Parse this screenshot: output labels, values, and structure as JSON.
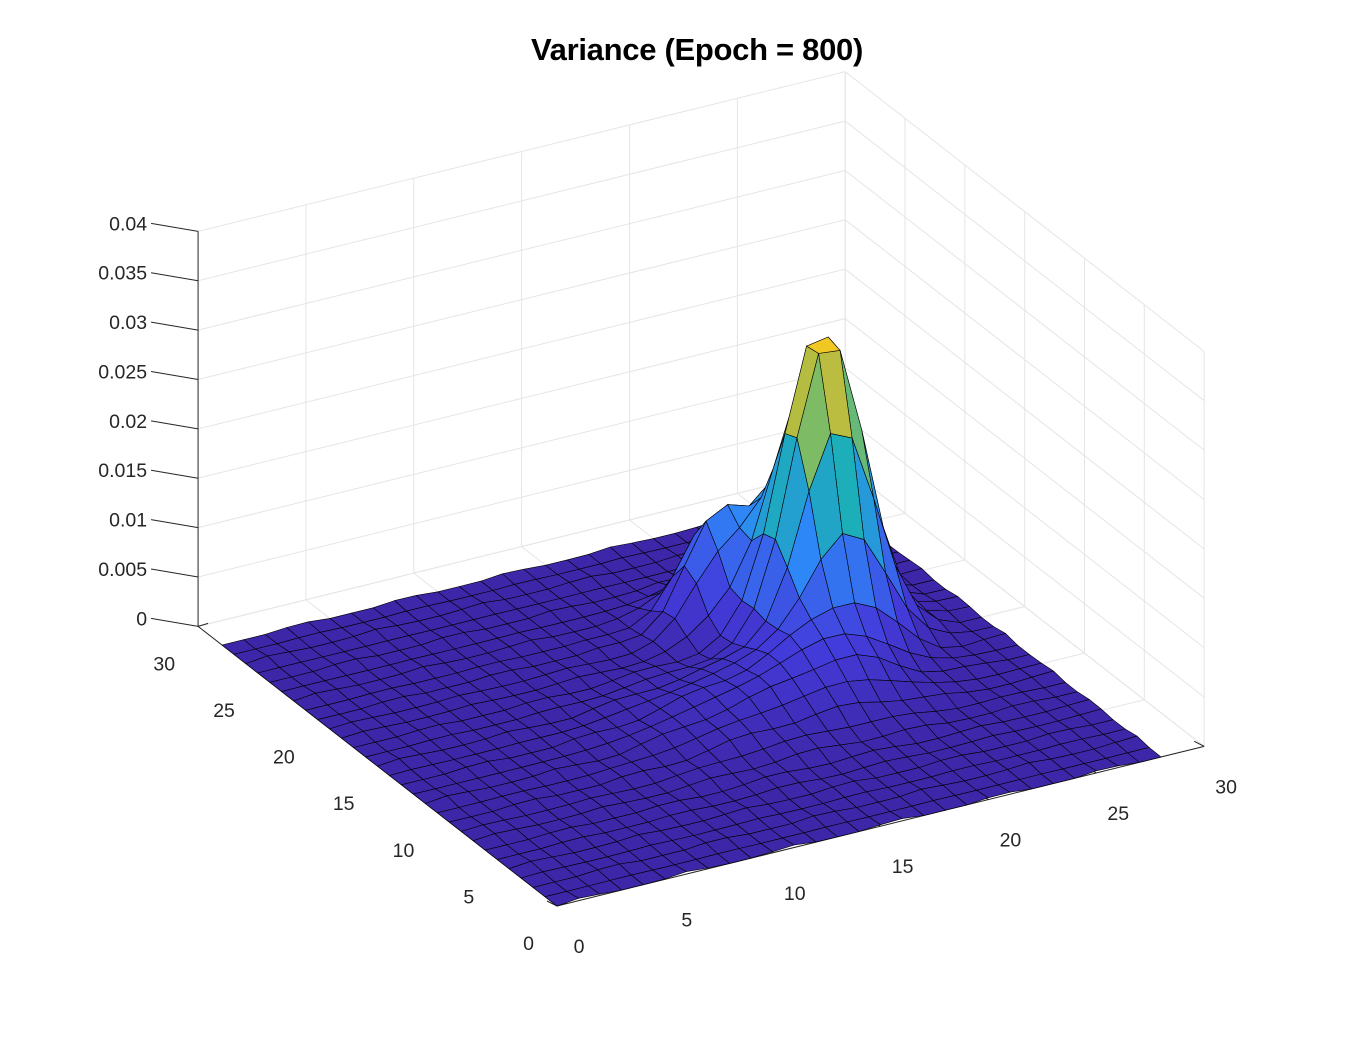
{
  "chart_data": {
    "type": "surface",
    "title": "Variance (Epoch = 800)",
    "xlabel": "",
    "ylabel": "",
    "zlabel": "",
    "xlim": [
      0,
      30
    ],
    "ylim": [
      0,
      30
    ],
    "zlim": [
      0,
      0.04
    ],
    "x_ticks": [
      "0",
      "5",
      "10",
      "15",
      "20",
      "25",
      "30"
    ],
    "y_ticks": [
      "0",
      "5",
      "10",
      "15",
      "20",
      "25",
      "30"
    ],
    "z_ticks": [
      "0",
      "0.005",
      "0.01",
      "0.015",
      "0.02",
      "0.025",
      "0.03",
      "0.035",
      "0.04"
    ],
    "grid": true,
    "colormap": "parula",
    "grid_size": [
      28,
      28
    ],
    "peaks": [
      {
        "x": 21.5,
        "y": 16.5,
        "height": 0.031,
        "spread": 1.7
      },
      {
        "x": 22.5,
        "y": 20.0,
        "height": 0.0135,
        "spread": 1.3
      },
      {
        "x": 19.0,
        "y": 20.5,
        "height": 0.0085,
        "spread": 1.3
      },
      {
        "x": 17.5,
        "y": 19.5,
        "height": 0.0045,
        "spread": 1.2
      },
      {
        "x": 19.5,
        "y": 12.5,
        "height": 0.0045,
        "spread": 2.2
      },
      {
        "x": 15.0,
        "y": 12.0,
        "height": 0.0022,
        "spread": 3.0
      }
    ],
    "colors": {
      "low": "#3e26a8",
      "mid_low": "#2e87f7",
      "mid": "#1ab2b2",
      "mid_high": "#a4be48",
      "high": "#f9fb15",
      "edge": "#000000",
      "gridline": "#e5e5e5"
    }
  }
}
